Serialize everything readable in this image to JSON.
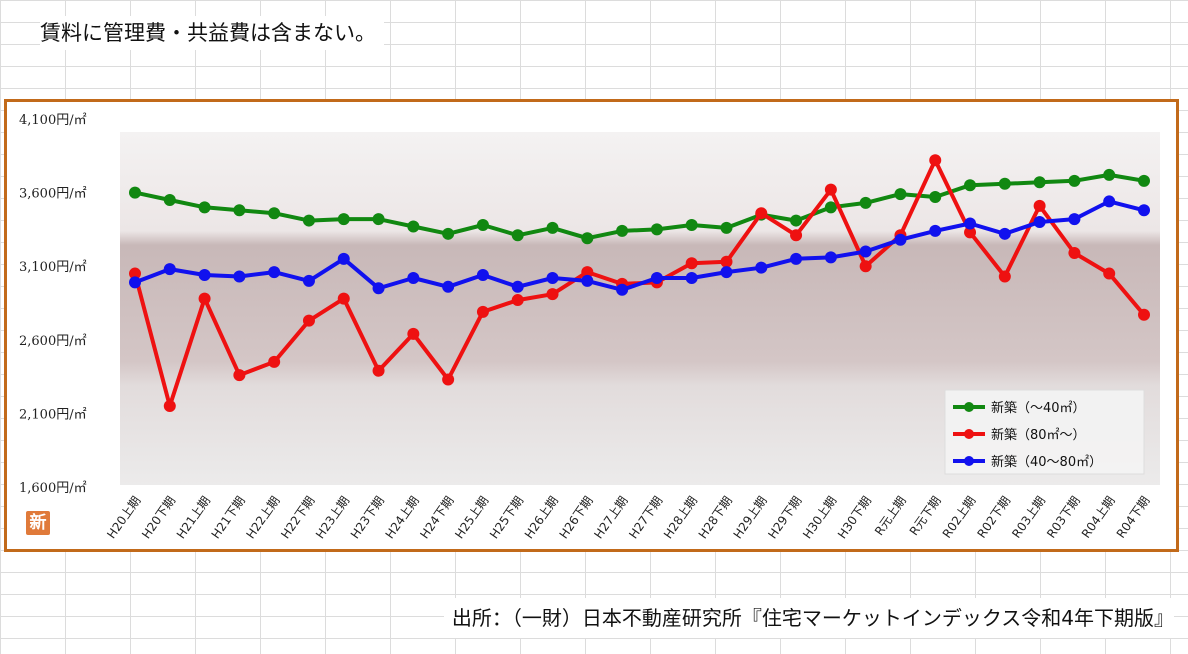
{
  "header": {
    "note": "賃料に管理費・共益費は含まない。"
  },
  "footer": {
    "source": "出所：（一財）日本不動産研究所『住宅マーケットインデックス令和4年下期版』"
  },
  "badge": {
    "label": "新"
  },
  "colors": {
    "frame": "#c26a1a",
    "green": "#118811",
    "red": "#ee1111",
    "blue": "#1111ee"
  },
  "chart_data": {
    "type": "line",
    "title": "",
    "xlabel": "",
    "ylabel": "",
    "ylim": [
      1600,
      4100
    ],
    "yticks": [
      "4,100円/㎡",
      "3,600円/㎡",
      "3,100円/㎡",
      "2,600円/㎡",
      "2,100円/㎡",
      "1,600円/㎡"
    ],
    "ytick_values": [
      4100,
      3600,
      3100,
      2600,
      2100,
      1600
    ],
    "categories": [
      "H20上期",
      "H20下期",
      "H21上期",
      "H21下期",
      "H22上期",
      "H22下期",
      "H23上期",
      "H23下期",
      "H24上期",
      "H24下期",
      "H25上期",
      "H25下期",
      "H26上期",
      "H26下期",
      "H27上期",
      "H27下期",
      "H28上期",
      "H28下期",
      "H29上期",
      "H29下期",
      "H30上期",
      "H30下期",
      "R元上期",
      "R元下期",
      "R02上期",
      "R02下期",
      "R03上期",
      "R03下期",
      "R04上期",
      "R04下期"
    ],
    "legend_position": "bottom-right",
    "grid": false,
    "series": [
      {
        "name": "新築（～40㎡）",
        "color": "#118811",
        "values": [
          3600,
          3550,
          3500,
          3480,
          3460,
          3410,
          3420,
          3420,
          3370,
          3320,
          3380,
          3310,
          3360,
          3290,
          3340,
          3350,
          3380,
          3360,
          3450,
          3410,
          3500,
          3530,
          3590,
          3570,
          3650,
          3660,
          3670,
          3680,
          3720,
          3680
        ]
      },
      {
        "name": "新築（80㎡～）",
        "color": "#ee1111",
        "values": [
          3050,
          2150,
          2880,
          2360,
          2450,
          2730,
          2880,
          2390,
          2640,
          2330,
          2790,
          2870,
          2910,
          3060,
          2980,
          2990,
          3120,
          3130,
          3460,
          3310,
          3620,
          3100,
          3310,
          3820,
          3330,
          3030,
          3510,
          3190,
          3050,
          2770
        ]
      },
      {
        "name": "新築（40～80㎡）",
        "color": "#1111ee",
        "values": [
          2990,
          3080,
          3040,
          3030,
          3060,
          3000,
          3150,
          2950,
          3020,
          2960,
          3040,
          2960,
          3020,
          3000,
          2940,
          3020,
          3020,
          3060,
          3090,
          3150,
          3160,
          3200,
          3280,
          3340,
          3390,
          3320,
          3400,
          3420,
          3540,
          3480
        ]
      }
    ]
  }
}
